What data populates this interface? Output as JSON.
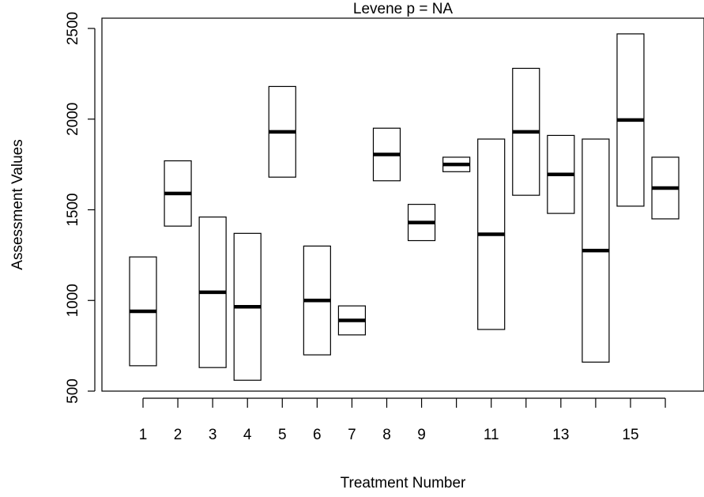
{
  "chart_data": {
    "type": "box",
    "title": "Levene p =  NA",
    "xlabel": "Treatment Number",
    "ylabel": "Assessment Values",
    "ylim": [
      500,
      2500
    ],
    "yticks": [
      500,
      1000,
      1500,
      2000,
      2500
    ],
    "x_tick_labels": [
      "1",
      "2",
      "3",
      "4",
      "5",
      "6",
      "7",
      "8",
      "9",
      "",
      "11",
      "",
      "13",
      "",
      "15",
      ""
    ],
    "grid": false,
    "categories": [
      "1",
      "2",
      "3",
      "4",
      "5",
      "6",
      "7",
      "8",
      "9",
      "10",
      "11",
      "12",
      "13",
      "14",
      "15",
      "16"
    ],
    "boxes": [
      {
        "category": "1",
        "low": 640,
        "median": 940,
        "high": 1240
      },
      {
        "category": "2",
        "low": 1410,
        "median": 1590,
        "high": 1770
      },
      {
        "category": "3",
        "low": 630,
        "median": 1045,
        "high": 1460
      },
      {
        "category": "4",
        "low": 560,
        "median": 965,
        "high": 1370
      },
      {
        "category": "5",
        "low": 1680,
        "median": 1930,
        "high": 2180
      },
      {
        "category": "6",
        "low": 700,
        "median": 1000,
        "high": 1300
      },
      {
        "category": "7",
        "low": 810,
        "median": 890,
        "high": 970
      },
      {
        "category": "8",
        "low": 1660,
        "median": 1805,
        "high": 1950
      },
      {
        "category": "9",
        "low": 1330,
        "median": 1430,
        "high": 1530
      },
      {
        "category": "10",
        "low": 1710,
        "median": 1750,
        "high": 1790
      },
      {
        "category": "11",
        "low": 840,
        "median": 1365,
        "high": 1890
      },
      {
        "category": "12",
        "low": 1580,
        "median": 1930,
        "high": 2280
      },
      {
        "category": "13",
        "low": 1480,
        "median": 1695,
        "high": 1910
      },
      {
        "category": "14",
        "low": 660,
        "median": 1275,
        "high": 1890
      },
      {
        "category": "15",
        "low": 1520,
        "median": 1995,
        "high": 2470
      },
      {
        "category": "16",
        "low": 1450,
        "median": 1620,
        "high": 1790
      }
    ]
  }
}
